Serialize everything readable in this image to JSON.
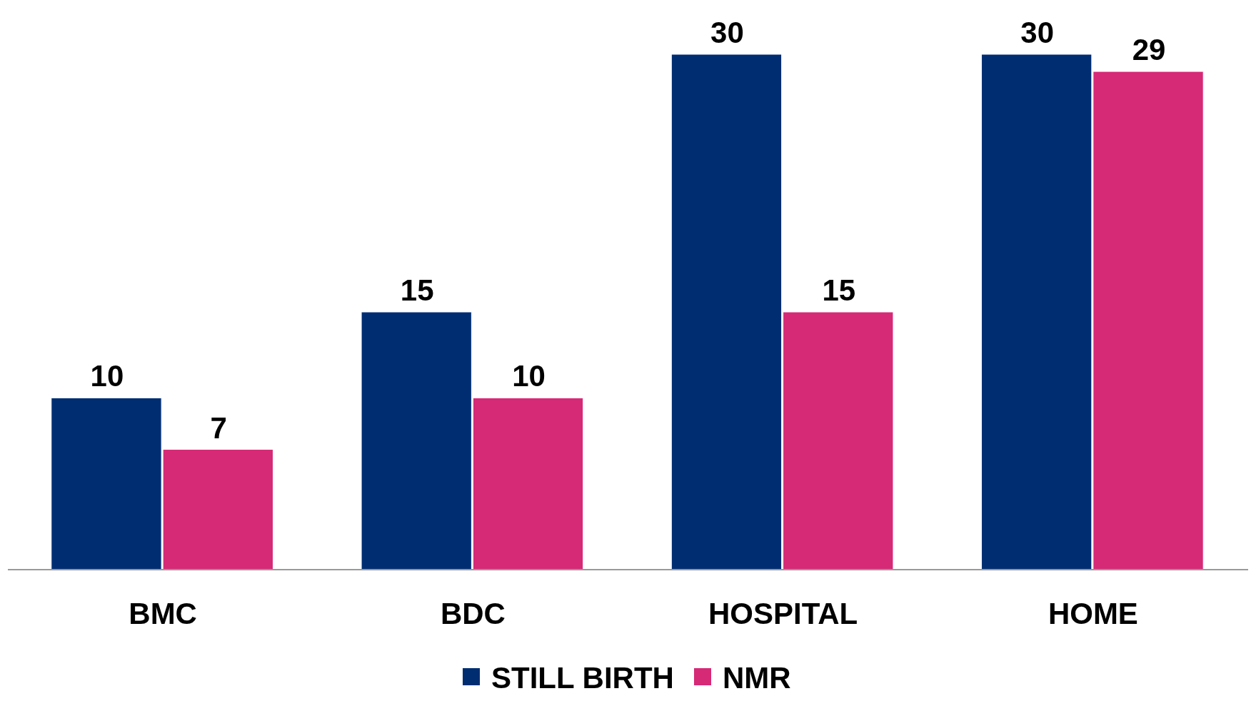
{
  "chart_data": {
    "type": "bar",
    "categories": [
      "BMC",
      "BDC",
      "HOSPITAL",
      "HOME"
    ],
    "series": [
      {
        "name": "STILL BIRTH",
        "color": "#002d72",
        "values": [
          10,
          15,
          30,
          30
        ]
      },
      {
        "name": "NMR",
        "color": "#d62976",
        "values": [
          7,
          10,
          15,
          29
        ]
      }
    ],
    "data_labels": true,
    "legend": "bottom"
  }
}
